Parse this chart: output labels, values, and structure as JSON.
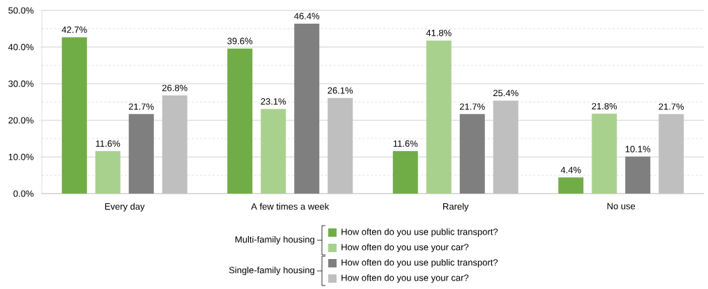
{
  "chart_data": {
    "type": "bar",
    "categories": [
      "Every day",
      "A few times a week",
      "Rarely",
      "No use"
    ],
    "series": [
      {
        "name": "How often do you use public transport?",
        "color": "#70ad47",
        "values": [
          42.7,
          39.6,
          11.6,
          4.4
        ],
        "value_labels": [
          "42.7%",
          "39.6%",
          "11.6%",
          "4.4%"
        ]
      },
      {
        "name": "How often do you use your car?",
        "color": "#a9d18e",
        "values": [
          11.6,
          23.1,
          41.8,
          21.8
        ],
        "value_labels": [
          "11.6%",
          "23.1%",
          "41.8%",
          "21.8%"
        ]
      },
      {
        "name": "How often do you use public transport?",
        "color": "#7f7f7f",
        "values": [
          21.7,
          46.4,
          21.7,
          10.1
        ],
        "value_labels": [
          "21.7%",
          "46.4%",
          "21.7%",
          "10.1%"
        ]
      },
      {
        "name": "How often do you use your car?",
        "color": "#bfbfbf",
        "values": [
          26.8,
          26.1,
          25.4,
          21.7
        ],
        "value_labels": [
          "26.8%",
          "26.1%",
          "25.4%",
          "21.7%"
        ]
      }
    ],
    "ylim": [
      0,
      50
    ],
    "yticks": [
      {
        "value": 0,
        "label": "0.0%"
      },
      {
        "value": 5,
        "label": null
      },
      {
        "value": 10,
        "label": "10.0%"
      },
      {
        "value": 15,
        "label": null
      },
      {
        "value": 20,
        "label": "20.0%"
      },
      {
        "value": 25,
        "label": null
      },
      {
        "value": 30,
        "label": "30.0%"
      },
      {
        "value": 35,
        "label": null
      },
      {
        "value": 40,
        "label": "40.0%"
      },
      {
        "value": 45,
        "label": null
      },
      {
        "value": 50,
        "label": "50.0%"
      }
    ],
    "grid": "y",
    "legend": "bottom",
    "annotations": [
      "Multi-family housing",
      "Single-family housing"
    ]
  }
}
